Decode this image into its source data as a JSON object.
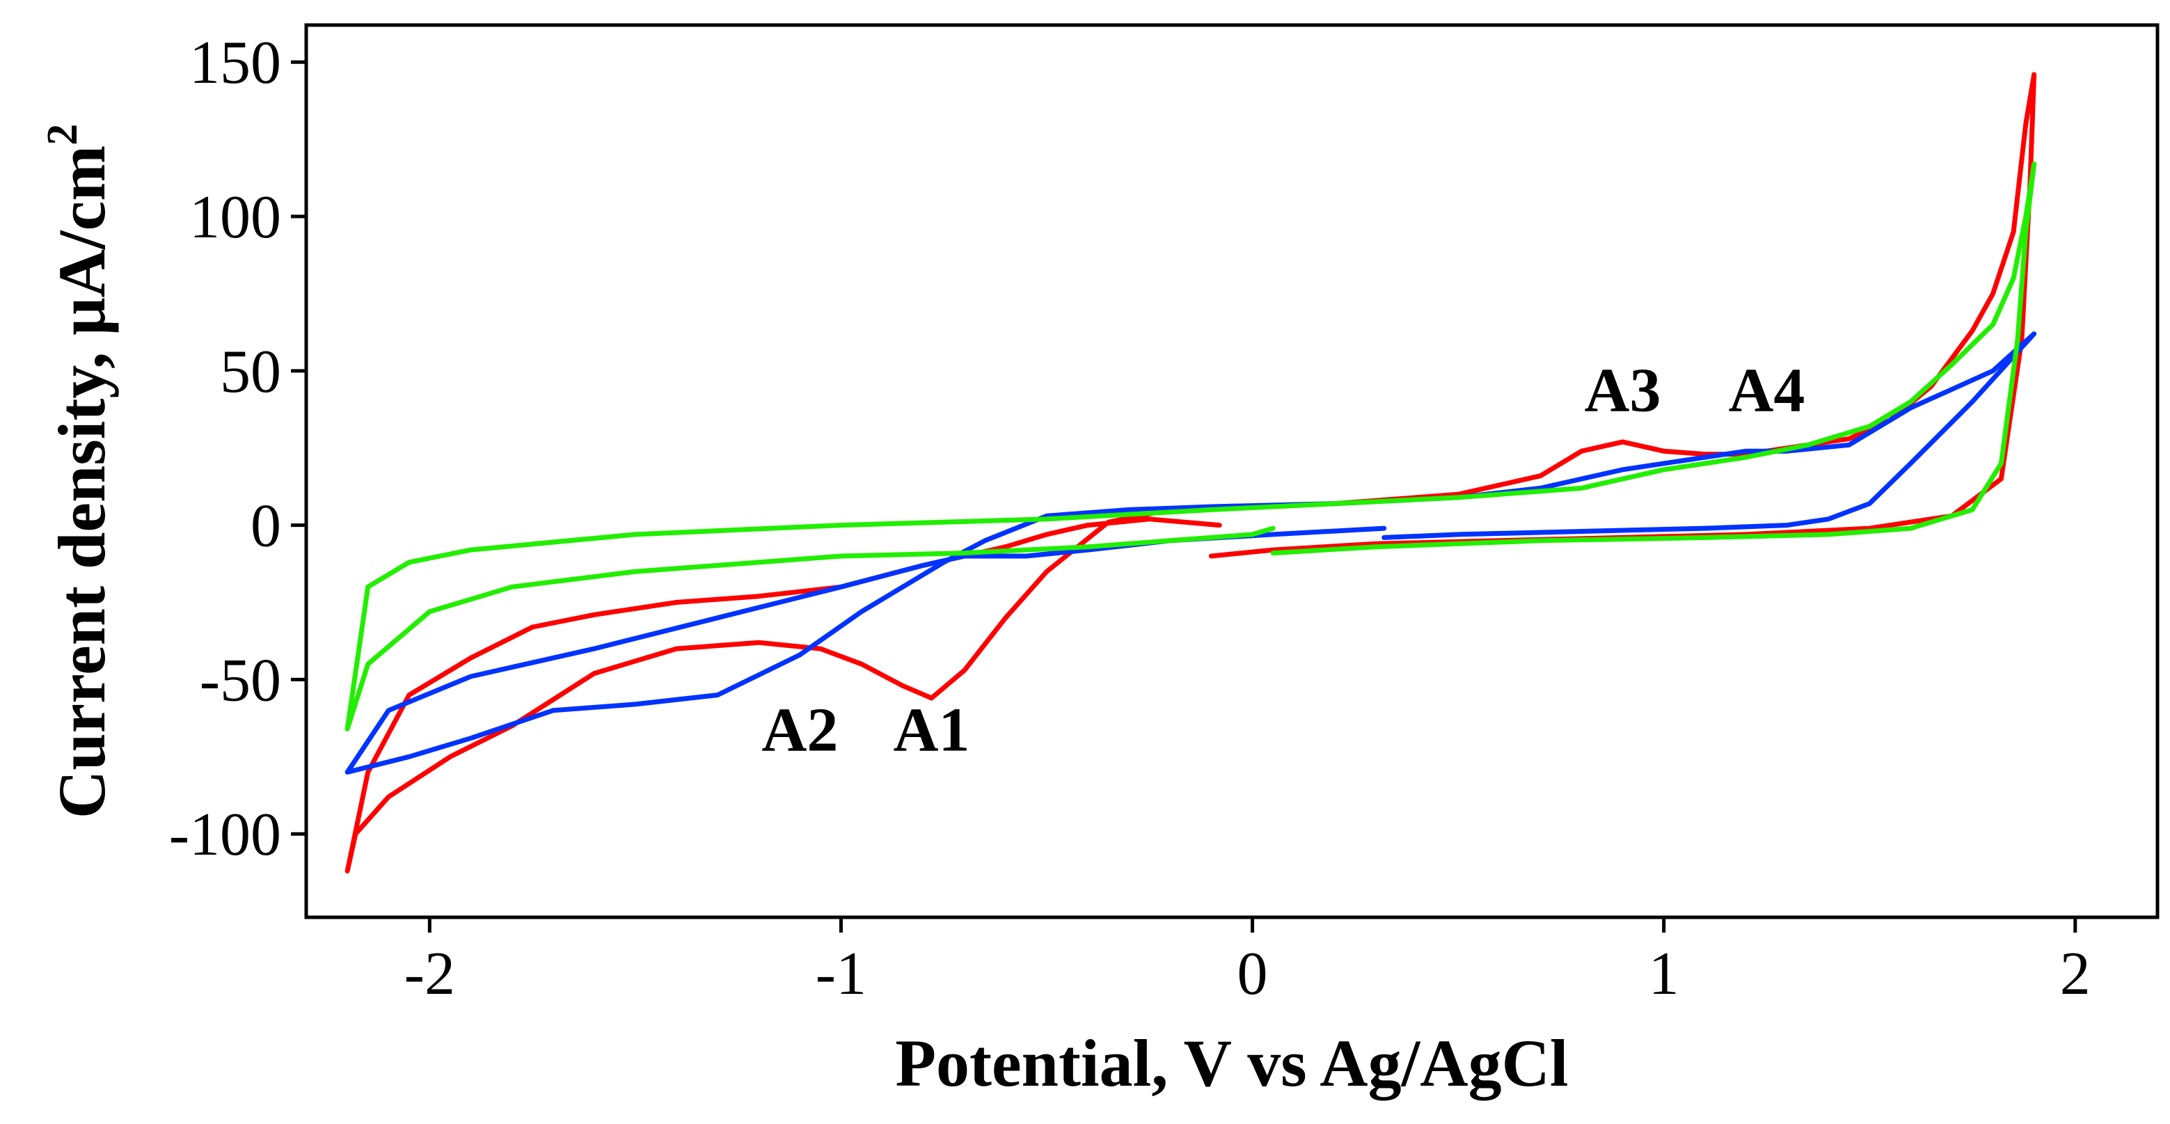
{
  "chart_data": {
    "type": "line",
    "title": "",
    "xlabel": "Potential, V vs Ag/AgCl",
    "ylabel_main": "Current density, μA/cm",
    "ylabel_sup": "2",
    "xlim": [
      -2.3,
      2.2
    ],
    "ylim": [
      -127,
      162
    ],
    "xticks": [
      -2,
      -1,
      0,
      1,
      2
    ],
    "xtick_labels": [
      "-2",
      "-1",
      "0",
      "1",
      "2"
    ],
    "yticks": [
      -100,
      -50,
      0,
      50,
      100,
      150
    ],
    "ytick_labels": [
      "-100",
      "-50",
      "0",
      "50",
      "100",
      "150"
    ],
    "grid": false,
    "annotations": [
      {
        "text": "A2",
        "x": -1.1,
        "y": -73
      },
      {
        "text": "A1",
        "x": -0.78,
        "y": -73
      },
      {
        "text": "A3",
        "x": 0.9,
        "y": 37
      },
      {
        "text": "A4",
        "x": 1.25,
        "y": 37
      }
    ],
    "series": [
      {
        "name": "red",
        "color": "#ff0000",
        "x": [
          -0.1,
          0.05,
          0.3,
          0.6,
          0.9,
          1.2,
          1.5,
          1.7,
          1.82,
          1.87,
          1.89,
          1.9,
          1.88,
          1.85,
          1.8,
          1.75,
          1.65,
          1.55,
          1.45,
          1.3,
          1.2,
          1.1,
          1.0,
          0.9,
          0.8,
          0.7,
          0.5,
          0.2,
          0.0,
          -0.2,
          -0.35,
          -0.5,
          -0.6,
          -0.7,
          -0.78,
          -0.85,
          -0.95,
          -1.05,
          -1.2,
          -1.4,
          -1.6,
          -1.8,
          -1.95,
          -2.1,
          -2.18,
          -2.2,
          -2.15,
          -2.05,
          -1.9,
          -1.75,
          -1.6,
          -1.4,
          -1.2,
          -1.0,
          -0.8,
          -0.7,
          -0.6,
          -0.5,
          -0.4,
          -0.25,
          -0.08
        ],
        "y": [
          -10,
          -8,
          -6,
          -5,
          -4,
          -3,
          -1,
          3,
          15,
          60,
          110,
          146,
          130,
          95,
          75,
          63,
          45,
          34,
          28,
          25,
          23,
          23,
          24,
          27,
          24,
          16,
          10,
          7,
          6,
          5,
          1,
          -15,
          -30,
          -47,
          -56,
          -52,
          -45,
          -40,
          -38,
          -40,
          -48,
          -65,
          -75,
          -88,
          -100,
          -112,
          -80,
          -55,
          -43,
          -33,
          -29,
          -25,
          -23,
          -20,
          -13,
          -10,
          -7,
          -3,
          0,
          2,
          0
        ]
      },
      {
        "name": "blue",
        "color": "#0033ff",
        "x": [
          0.32,
          0.5,
          0.8,
          1.1,
          1.3,
          1.4,
          1.5,
          1.6,
          1.75,
          1.9,
          1.8,
          1.6,
          1.45,
          1.3,
          1.2,
          1.1,
          0.9,
          0.7,
          0.5,
          0.2,
          -0.1,
          -0.3,
          -0.5,
          -0.65,
          -0.75,
          -0.95,
          -1.1,
          -1.3,
          -1.5,
          -1.7,
          -1.9,
          -2.05,
          -2.2,
          -2.1,
          -1.9,
          -1.6,
          -1.3,
          -1.0,
          -0.8,
          -0.7,
          -0.55,
          -0.4,
          -0.2,
          0.05,
          0.32
        ],
        "y": [
          -4,
          -3,
          -2,
          -1,
          0,
          2,
          7,
          20,
          40,
          62,
          50,
          38,
          26,
          24,
          24,
          22,
          18,
          12,
          9,
          7,
          6,
          5,
          3,
          -5,
          -12,
          -28,
          -42,
          -55,
          -58,
          -60,
          -69,
          -75,
          -80,
          -60,
          -49,
          -40,
          -30,
          -20,
          -13,
          -10,
          -10,
          -8,
          -5,
          -3,
          -1
        ]
      },
      {
        "name": "green",
        "color": "#22ee00",
        "x": [
          0.05,
          0.3,
          0.7,
          1.1,
          1.4,
          1.6,
          1.75,
          1.82,
          1.86,
          1.88,
          1.9,
          1.88,
          1.85,
          1.8,
          1.7,
          1.6,
          1.5,
          1.35,
          1.2,
          1.0,
          0.8,
          0.5,
          0.2,
          -0.1,
          -0.5,
          -1.0,
          -1.5,
          -1.9,
          -2.05,
          -2.15,
          -2.2,
          -2.15,
          -2.0,
          -1.8,
          -1.5,
          -1.0,
          -0.7,
          -0.4,
          -0.2,
          0.0,
          0.05
        ],
        "y": [
          -9,
          -7,
          -5,
          -4,
          -3,
          -1,
          5,
          20,
          60,
          95,
          117,
          100,
          80,
          65,
          52,
          40,
          32,
          26,
          22,
          18,
          12,
          9,
          7,
          5,
          2,
          0,
          -3,
          -8,
          -12,
          -20,
          -66,
          -45,
          -28,
          -20,
          -15,
          -10,
          -9,
          -7,
          -5,
          -3,
          -1
        ]
      }
    ]
  }
}
